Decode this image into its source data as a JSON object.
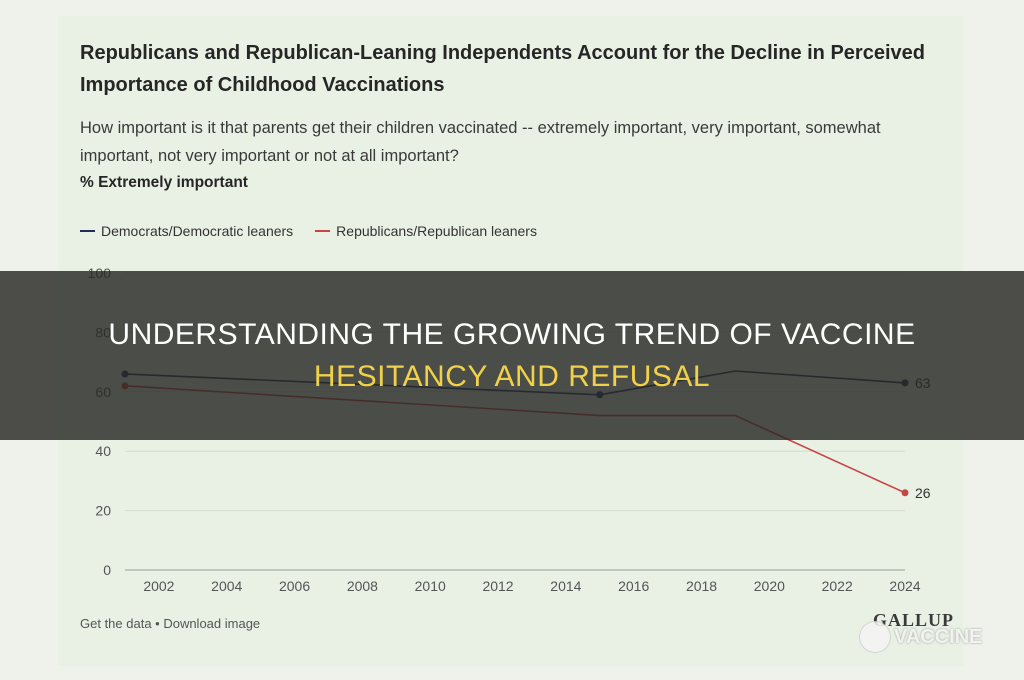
{
  "header": {
    "title": "Republicans and Republican-Leaning Independents Account for the Decline in Perceived Importance of Childhood Vaccinations",
    "question": "How important is it that parents get their children vaccinated -- extremely important, very important, somewhat important, not very important or not at all important?",
    "measure": "% Extremely important"
  },
  "colors": {
    "democrats": "#1f2f5a",
    "republicans": "#c64646",
    "banner_title_white": "#ffffff",
    "banner_title_yellow": "#f2d14a"
  },
  "chart_data": {
    "type": "line",
    "xlim": [
      2001,
      2024
    ],
    "ylim": [
      0,
      100
    ],
    "x_ticks": [
      "2002",
      "2004",
      "2006",
      "2008",
      "2010",
      "2012",
      "2014",
      "2016",
      "2018",
      "2020",
      "2022",
      "2024"
    ],
    "y_ticks": [
      "0",
      "20",
      "40",
      "60",
      "80",
      "100"
    ],
    "grid": "horizontal",
    "legend": "top-left",
    "series": [
      {
        "name": "Democrats/Democratic leaners",
        "color": "#1f2f5a",
        "x": [
          2001,
          2015,
          2019,
          2024
        ],
        "values": [
          66,
          59,
          67,
          63
        ],
        "end_label": "63"
      },
      {
        "name": "Republicans/Republican leaners",
        "color": "#c64646",
        "x": [
          2001,
          2015,
          2019,
          2024
        ],
        "values": [
          62,
          52,
          52,
          26
        ],
        "end_label": "26"
      }
    ]
  },
  "footer": {
    "links": "Get the data • Download image",
    "brand": "GALLUP"
  },
  "banner": {
    "line1_white": "UNDERSTANDING THE GROWING TREND OF VACCINE",
    "line2_yellow": "HESITANCY AND REFUSAL"
  },
  "watermark": {
    "text": "VACCINE",
    "icon": "chat-bubble-icon"
  }
}
